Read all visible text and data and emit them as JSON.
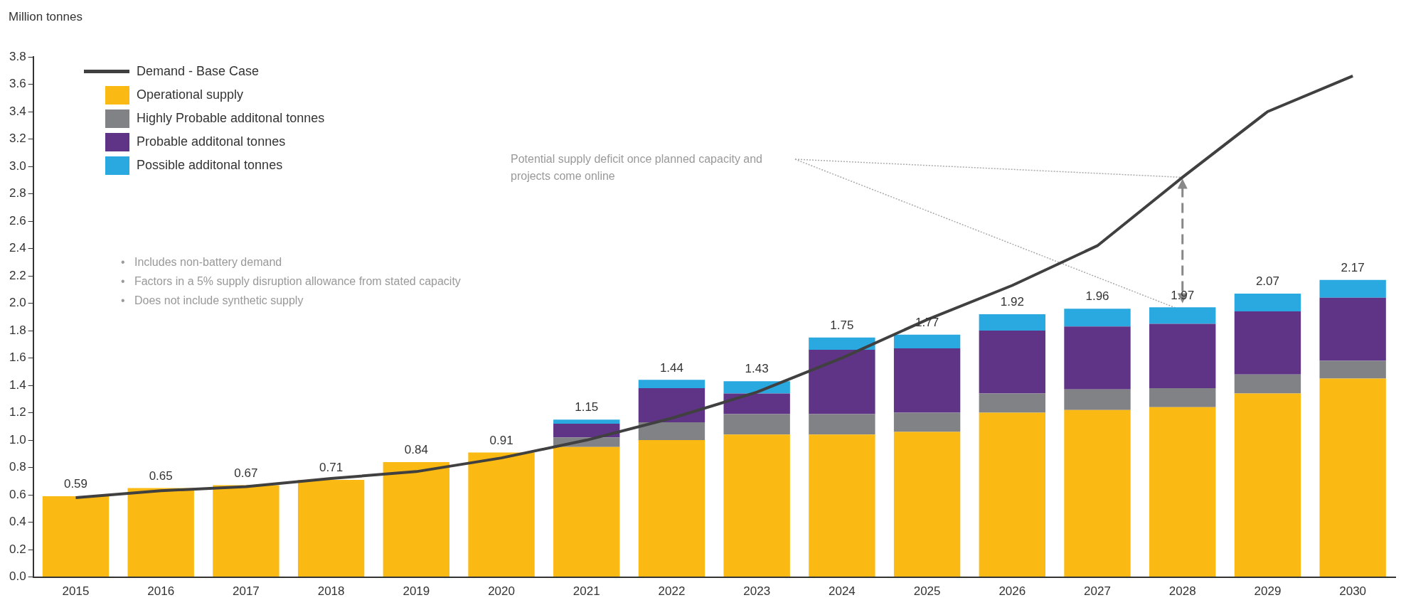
{
  "chart_data": {
    "type": "bar",
    "stacked": true,
    "ylabel": "Million tonnes",
    "categories": [
      "2015",
      "2016",
      "2017",
      "2018",
      "2019",
      "2020",
      "2021",
      "2022",
      "2023",
      "2024",
      "2025",
      "2026",
      "2027",
      "2028",
      "2029",
      "2030"
    ],
    "series": [
      {
        "name": "Demand - Base Case",
        "type": "line",
        "color": "#404040",
        "marker": "none",
        "values": [
          0.58,
          0.63,
          0.66,
          0.72,
          0.77,
          0.87,
          1.0,
          1.16,
          1.35,
          1.6,
          1.88,
          2.13,
          2.42,
          2.92,
          3.4,
          3.66
        ]
      },
      {
        "name": "Operational supply",
        "color": "#fbb913",
        "values": [
          0.59,
          0.65,
          0.67,
          0.71,
          0.84,
          0.91,
          0.95,
          1.0,
          1.04,
          1.04,
          1.06,
          1.2,
          1.22,
          1.24,
          1.34,
          1.45
        ]
      },
      {
        "name": "Highly Probable additonal tonnes",
        "color": "#808285",
        "values": [
          null,
          null,
          null,
          null,
          null,
          null,
          0.07,
          0.13,
          0.15,
          0.15,
          0.14,
          0.14,
          0.15,
          0.14,
          0.14,
          0.13
        ]
      },
      {
        "name": "Probable additonal tonnes",
        "color": "#5f3487",
        "values": [
          null,
          null,
          null,
          null,
          null,
          null,
          0.1,
          0.25,
          0.15,
          0.47,
          0.47,
          0.46,
          0.46,
          0.47,
          0.46,
          0.46
        ]
      },
      {
        "name": "Possible additonal tonnes",
        "color": "#2aa8e0",
        "values": [
          null,
          null,
          null,
          null,
          null,
          null,
          0.03,
          0.06,
          0.09,
          0.09,
          0.1,
          0.12,
          0.13,
          0.12,
          0.13,
          0.13
        ]
      }
    ],
    "totals": [
      "0.59",
      "0.65",
      "0.67",
      "0.71",
      "0.84",
      "0.91",
      "1.15",
      "1.44",
      "1.43",
      "1.75",
      "1.77",
      "1.92",
      "1.96",
      "1.97",
      "2.07",
      "2.17"
    ],
    "ylim": [
      0,
      3.8
    ],
    "yticks": [
      {
        "value": 0,
        "label": "0.0"
      },
      0.2,
      0.4,
      0.6,
      0.8,
      {
        "value": 1,
        "label": "1.0"
      },
      1.2,
      1.4,
      1.6,
      1.8,
      {
        "value": 2,
        "label": "2.0"
      },
      2.2,
      2.4,
      2.6,
      2.8,
      {
        "value": 3,
        "label": "3.0"
      },
      3.2,
      3.4,
      3.6,
      3.8
    ],
    "grid": false,
    "legend": "top left",
    "annotations": [
      "Potential supply deficit once planned capacity and projects come online",
      "•   Includes non-battery demand",
      "•   Factors in a 5% supply disruption allowance from stated capacity",
      "•   Does not include synthetic supply"
    ]
  }
}
